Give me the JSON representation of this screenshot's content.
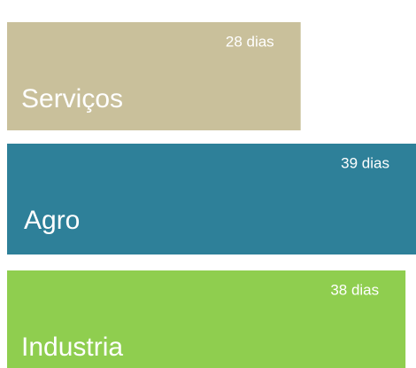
{
  "chart_data": {
    "type": "bar",
    "orientation": "horizontal",
    "categories": [
      "Serviços",
      "Agro",
      "Industria"
    ],
    "values": [
      28,
      39,
      38
    ],
    "value_labels": [
      "28 dias",
      "39 dias",
      "38 dias"
    ],
    "colors": [
      "#c9c09b",
      "#2e8099",
      "#8fce4f"
    ]
  }
}
